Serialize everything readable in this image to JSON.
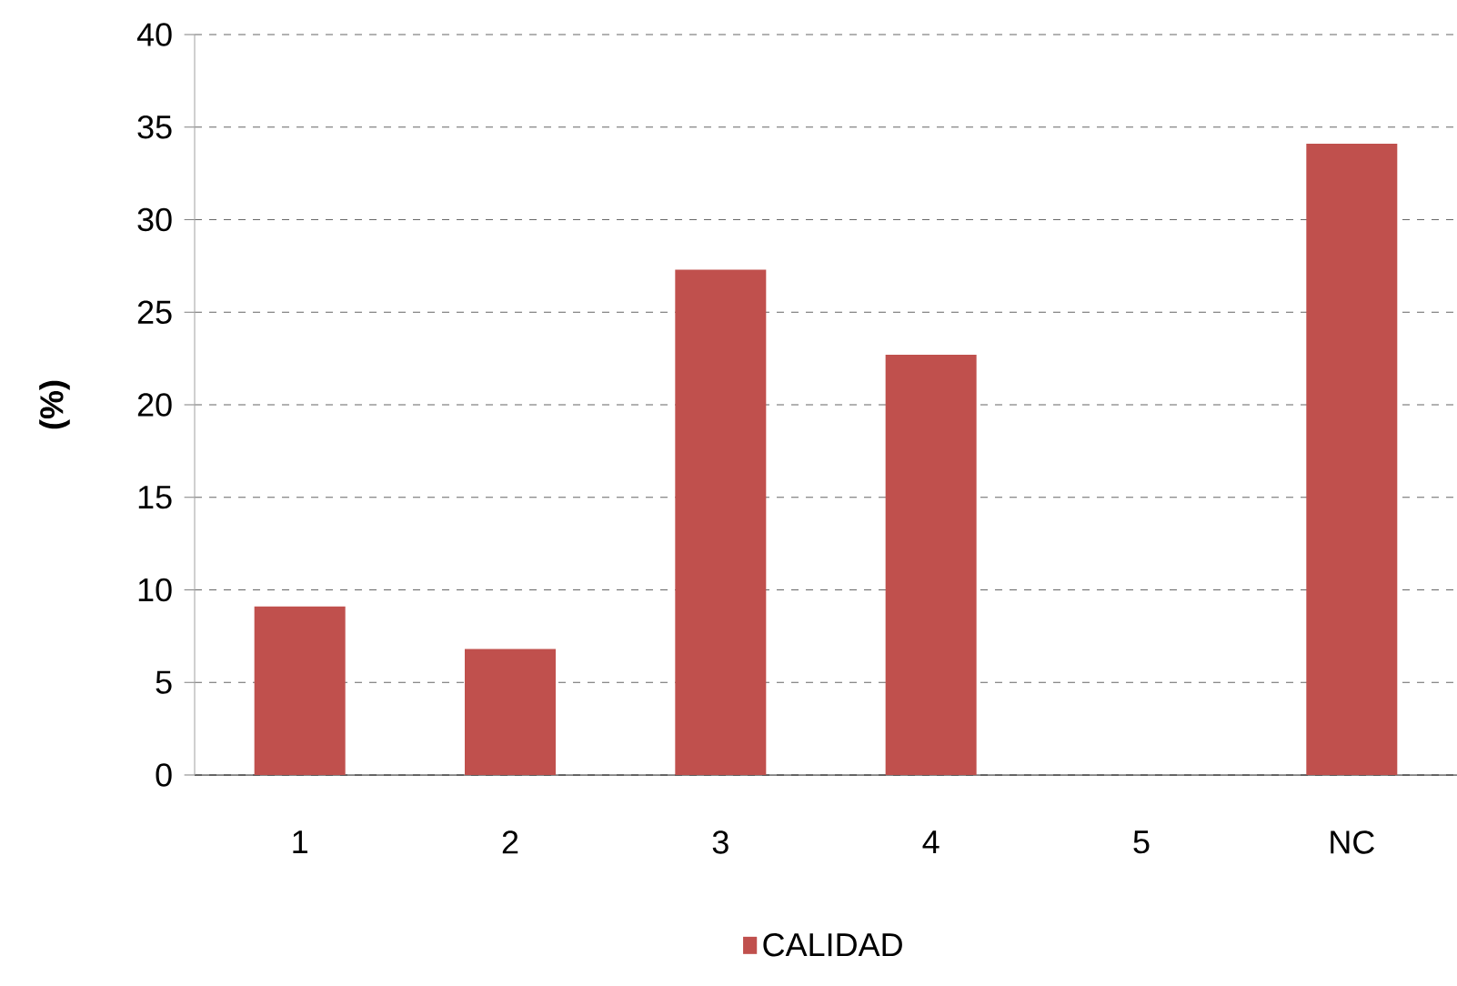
{
  "chart_data": {
    "type": "bar",
    "ylabel": "(%)",
    "categories": [
      "1",
      "2",
      "3",
      "4",
      "5",
      "NC"
    ],
    "series": [
      {
        "name": "CALIDAD",
        "color": "#c0504d",
        "values": [
          9.1,
          6.8,
          27.3,
          22.7,
          0,
          34.1
        ]
      }
    ],
    "ylim": [
      0,
      40
    ],
    "yticks": [
      0,
      5,
      10,
      15,
      20,
      25,
      30,
      35,
      40
    ],
    "grid": "y",
    "legend": "bottom"
  }
}
